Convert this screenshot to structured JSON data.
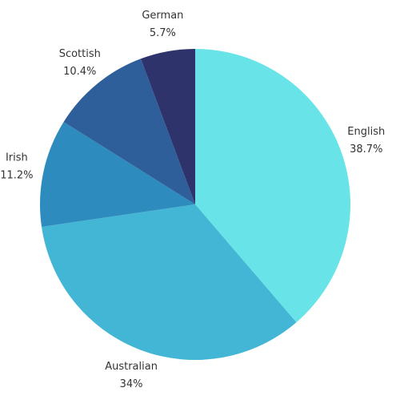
{
  "chart_data": {
    "type": "pie",
    "categories": [
      "English",
      "Australian",
      "Irish",
      "Scottish",
      "German"
    ],
    "values": [
      38.7,
      34,
      11.2,
      10.4,
      5.7
    ],
    "value_labels": [
      "38.7%",
      "34%",
      "11.2%",
      "10.4%",
      "5.7%"
    ],
    "colors": [
      "#68e4e8",
      "#42b6d4",
      "#2e8bbd",
      "#2f5f9a",
      "#2f336b"
    ]
  }
}
